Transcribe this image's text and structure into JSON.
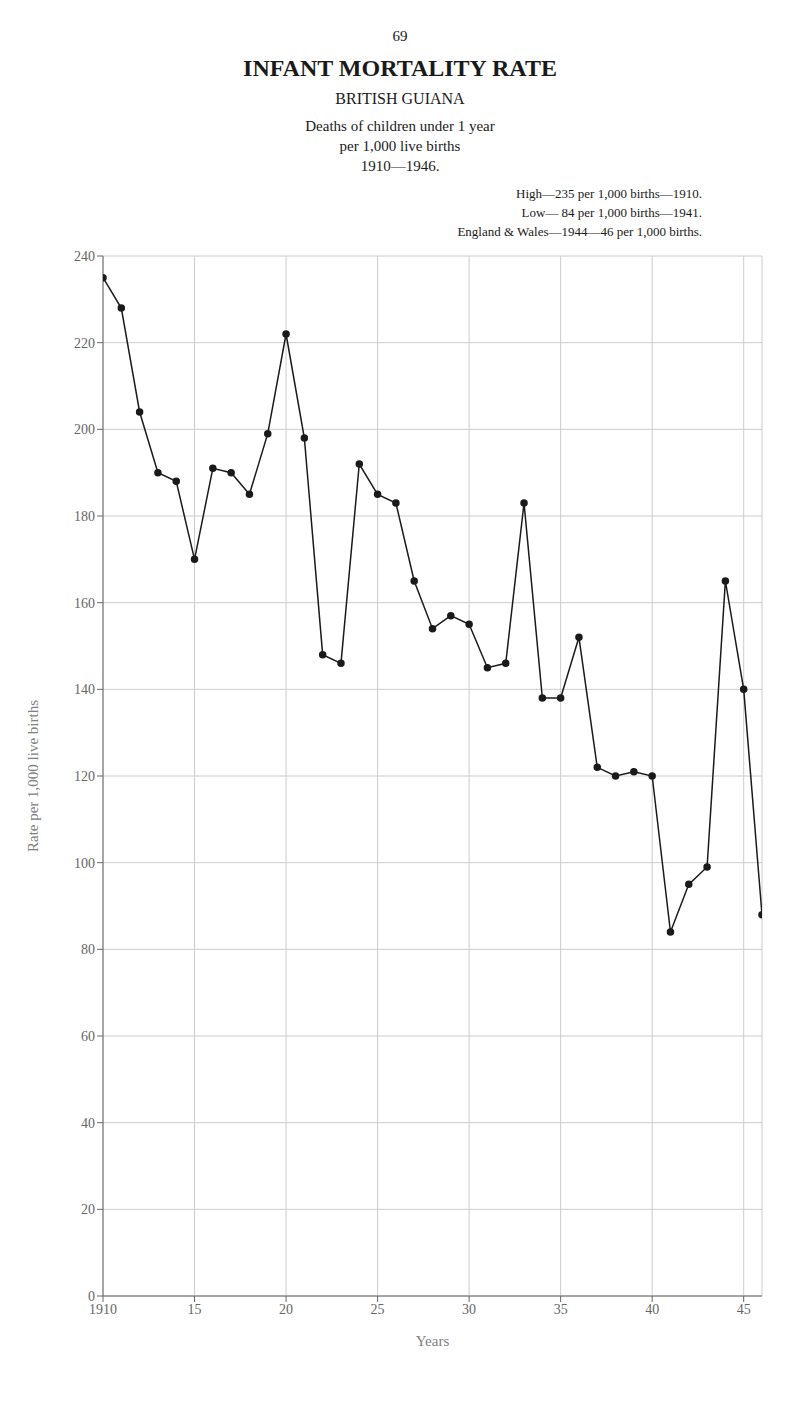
{
  "chart_data": {
    "type": "line",
    "page_number": "69",
    "title": "INFANT MORTALITY RATE",
    "subtitle": "BRITISH GUIANA",
    "description": [
      "Deaths of children under 1 year",
      "per 1,000 live births",
      "1910—1946."
    ],
    "annotations": [
      "High—235 per 1,000 births—1910.",
      "Low— 84 per 1,000 births—1941.",
      "England & Wales—1944—46 per 1,000 births."
    ],
    "xlabel": "Years",
    "ylabel": "Rate per 1,000 live births",
    "x": [
      1910,
      1911,
      1912,
      1913,
      1914,
      1915,
      1916,
      1917,
      1918,
      1919,
      1920,
      1921,
      1922,
      1923,
      1924,
      1925,
      1926,
      1927,
      1928,
      1929,
      1930,
      1931,
      1932,
      1933,
      1934,
      1935,
      1936,
      1937,
      1938,
      1939,
      1940,
      1941,
      1942,
      1943,
      1944,
      1945,
      1946
    ],
    "values": [
      235,
      228,
      204,
      190,
      188,
      170,
      191,
      190,
      185,
      199,
      222,
      198,
      148,
      146,
      192,
      185,
      183,
      165,
      154,
      157,
      155,
      145,
      146,
      183,
      138,
      138,
      152,
      122,
      120,
      121,
      120,
      84,
      95,
      99,
      165,
      140,
      88
    ],
    "xlim": [
      1910,
      1946
    ],
    "xticks": [
      1910,
      {
        "value": 1915,
        "label": "15"
      },
      {
        "value": 1920,
        "label": "20"
      },
      {
        "value": 1925,
        "label": "25"
      },
      {
        "value": 1930,
        "label": "30"
      },
      {
        "value": 1935,
        "label": "35"
      },
      {
        "value": 1940,
        "label": "40"
      },
      {
        "value": 1945,
        "label": "45"
      }
    ],
    "ylim": [
      0,
      240
    ],
    "yticks": [
      0,
      20,
      40,
      60,
      80,
      100,
      120,
      140,
      160,
      180,
      200,
      220,
      240
    ],
    "grid": true,
    "color": "#1a1a1a",
    "marker": "circle"
  }
}
